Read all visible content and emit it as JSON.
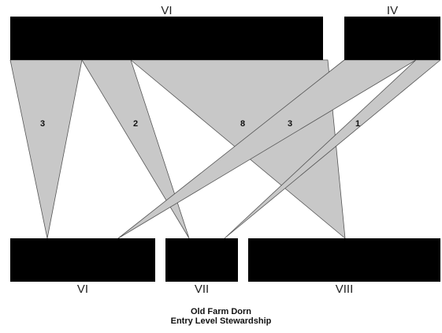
{
  "diagram": {
    "type": "flow",
    "colors": {
      "node": "#000000",
      "flow_fill": "#c8c8c8",
      "flow_stroke": "#555555",
      "text": "#111111"
    },
    "top_nodes": [
      {
        "id": "top-vi",
        "label": "VI"
      },
      {
        "id": "top-iv",
        "label": "IV"
      }
    ],
    "bottom_nodes": [
      {
        "id": "bottom-vi",
        "label": "VI"
      },
      {
        "id": "bottom-vii",
        "label": "VII"
      },
      {
        "id": "bottom-viii",
        "label": "VIII"
      }
    ],
    "flows": [
      {
        "from": "top-vi",
        "to": "bottom-vi",
        "value": "3"
      },
      {
        "from": "top-vi",
        "to": "bottom-vii",
        "value": "2"
      },
      {
        "from": "top-vi",
        "to": "bottom-viii",
        "value": "8"
      },
      {
        "from": "top-iv",
        "to": "bottom-vi",
        "value": "3"
      },
      {
        "from": "top-iv",
        "to": "bottom-vii",
        "value": "1"
      }
    ]
  },
  "caption": {
    "line1": "Old Farm Dorn",
    "line2": "Entry Level Stewardship"
  }
}
